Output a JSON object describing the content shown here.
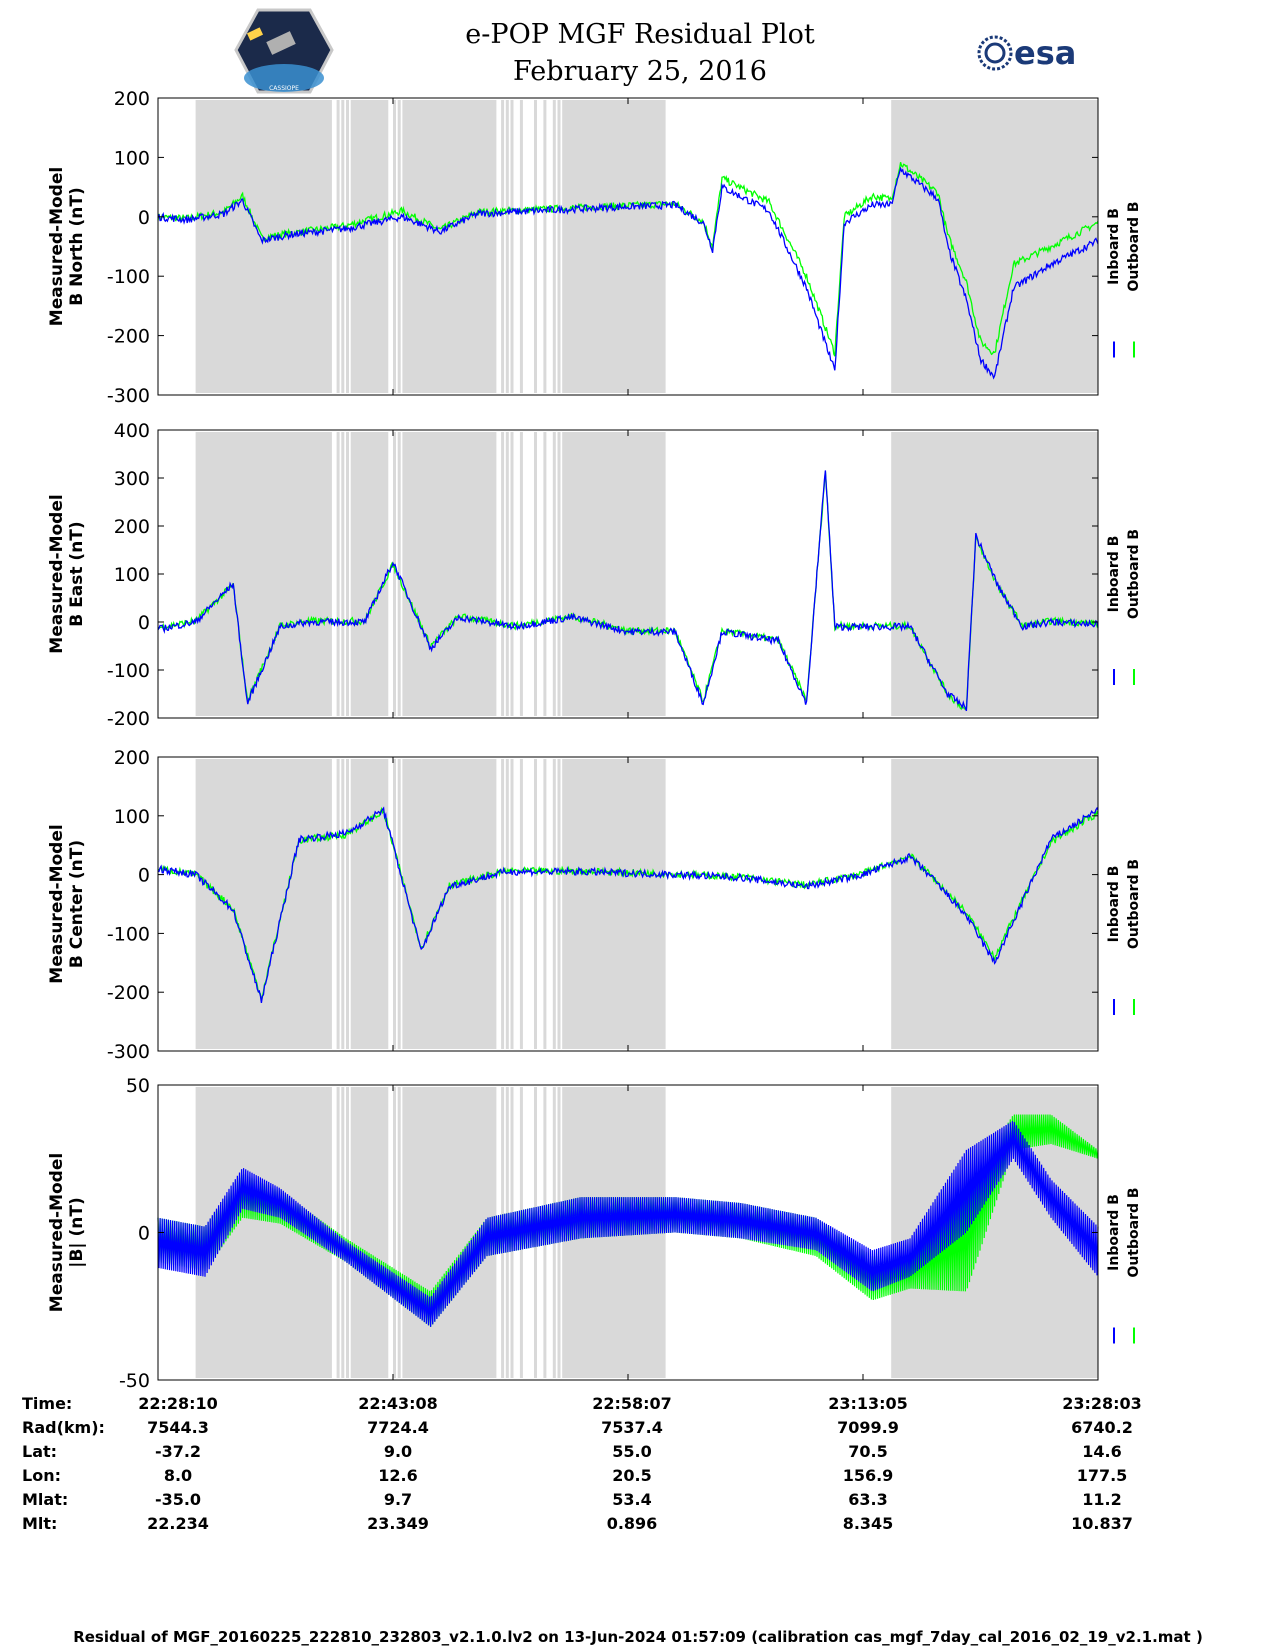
{
  "header": {
    "title_line1": "e-POP MGF Residual Plot",
    "title_line2": "February 25, 2016",
    "esa_logo_text": "esa",
    "cassiope_logo_text": "CASSIOPE"
  },
  "colors": {
    "inboard": "#0000ff",
    "outboard": "#00ff00",
    "shade": "#d9d9d9",
    "axis": "#000000"
  },
  "chart_data": [
    {
      "type": "line",
      "ylabel_line1": "Measured-Model",
      "ylabel_line2": "B North (nT)",
      "ylim": [
        -300,
        200
      ],
      "yticks": [
        200,
        100,
        0,
        -100,
        -200,
        -300
      ],
      "xlim": [
        0,
        1
      ],
      "legend": [
        "Inboard B",
        "Outboard B"
      ],
      "legend_placement": "right",
      "series": [
        {
          "name": "Inboard B",
          "x": [
            0,
            0.03,
            0.07,
            0.09,
            0.11,
            0.14,
            0.2,
            0.26,
            0.3,
            0.34,
            0.4,
            0.47,
            0.55,
            0.58,
            0.59,
            0.6,
            0.65,
            0.69,
            0.72,
            0.73,
            0.76,
            0.78,
            0.79,
            0.83,
            0.84,
            0.86,
            0.875,
            0.89,
            0.91,
            0.95,
            1.0
          ],
          "y": [
            0,
            -5,
            5,
            28,
            -40,
            -30,
            -20,
            0,
            -25,
            5,
            10,
            15,
            20,
            -10,
            -55,
            50,
            10,
            -120,
            -260,
            -10,
            20,
            20,
            80,
            30,
            -50,
            -140,
            -240,
            -270,
            -120,
            -80,
            -40
          ]
        },
        {
          "name": "Outboard B",
          "x": [
            0,
            0.03,
            0.07,
            0.09,
            0.11,
            0.14,
            0.2,
            0.26,
            0.3,
            0.34,
            0.4,
            0.47,
            0.55,
            0.58,
            0.59,
            0.6,
            0.65,
            0.69,
            0.72,
            0.73,
            0.76,
            0.78,
            0.79,
            0.83,
            0.84,
            0.86,
            0.875,
            0.89,
            0.91,
            0.95,
            1.0
          ],
          "y": [
            0,
            -3,
            8,
            35,
            -35,
            -28,
            -15,
            10,
            -22,
            8,
            12,
            17,
            22,
            -8,
            -50,
            65,
            25,
            -100,
            -230,
            0,
            35,
            30,
            90,
            40,
            -30,
            -110,
            -210,
            -230,
            -80,
            -50,
            -10
          ]
        }
      ]
    },
    {
      "type": "line",
      "ylabel_line1": "Measured-Model",
      "ylabel_line2": "B East (nT)",
      "ylim": [
        -200,
        400
      ],
      "yticks": [
        400,
        300,
        200,
        100,
        0,
        -100,
        -200
      ],
      "xlim": [
        0,
        1
      ],
      "legend": [
        "Inboard B",
        "Outboard B"
      ],
      "legend_placement": "right",
      "series": [
        {
          "name": "Inboard B",
          "x": [
            0,
            0.04,
            0.08,
            0.095,
            0.13,
            0.16,
            0.22,
            0.25,
            0.29,
            0.32,
            0.38,
            0.44,
            0.5,
            0.55,
            0.58,
            0.6,
            0.66,
            0.69,
            0.71,
            0.72,
            0.74,
            0.8,
            0.84,
            0.86,
            0.87,
            0.895,
            0.92,
            0.95,
            1.0
          ],
          "y": [
            -15,
            0,
            80,
            -170,
            -10,
            0,
            0,
            125,
            -55,
            10,
            -10,
            10,
            -20,
            -20,
            -170,
            -20,
            -40,
            -170,
            320,
            -10,
            -10,
            -10,
            -150,
            -180,
            180,
            70,
            -10,
            0,
            -5
          ]
        },
        {
          "name": "Outboard B",
          "x": [
            0,
            0.04,
            0.08,
            0.095,
            0.13,
            0.16,
            0.22,
            0.25,
            0.29,
            0.32,
            0.38,
            0.44,
            0.5,
            0.55,
            0.58,
            0.6,
            0.66,
            0.69,
            0.71,
            0.72,
            0.74,
            0.8,
            0.84,
            0.86,
            0.87,
            0.895,
            0.92,
            0.95,
            1.0
          ],
          "y": [
            -12,
            2,
            78,
            -165,
            -8,
            2,
            2,
            120,
            -50,
            12,
            -8,
            12,
            -18,
            -18,
            -165,
            -18,
            -38,
            -165,
            315,
            -8,
            -8,
            -8,
            -150,
            -185,
            175,
            68,
            -8,
            2,
            -3
          ]
        }
      ]
    },
    {
      "type": "line",
      "ylabel_line1": "Measured-Model",
      "ylabel_line2": "B Center (nT)",
      "ylim": [
        -300,
        200
      ],
      "yticks": [
        200,
        100,
        0,
        -100,
        -200,
        -300
      ],
      "xlim": [
        0,
        1
      ],
      "legend": [
        "Inboard B",
        "Outboard B"
      ],
      "legend_placement": "right",
      "series": [
        {
          "name": "Inboard B",
          "x": [
            0,
            0.04,
            0.08,
            0.11,
            0.15,
            0.2,
            0.24,
            0.28,
            0.31,
            0.37,
            0.45,
            0.55,
            0.62,
            0.69,
            0.75,
            0.8,
            0.82,
            0.86,
            0.89,
            0.95,
            1.0
          ],
          "y": [
            10,
            0,
            -60,
            -215,
            60,
            70,
            110,
            -130,
            -20,
            5,
            5,
            0,
            -5,
            -20,
            0,
            30,
            0,
            -70,
            -150,
            60,
            110
          ]
        },
        {
          "name": "Outboard B",
          "x": [
            0,
            0.04,
            0.08,
            0.11,
            0.15,
            0.2,
            0.24,
            0.28,
            0.31,
            0.37,
            0.45,
            0.55,
            0.62,
            0.69,
            0.75,
            0.8,
            0.82,
            0.86,
            0.89,
            0.95,
            1.0
          ],
          "y": [
            10,
            0,
            -58,
            -210,
            58,
            68,
            108,
            -125,
            -18,
            6,
            6,
            1,
            -4,
            -18,
            2,
            32,
            2,
            -65,
            -140,
            55,
            105
          ]
        }
      ]
    },
    {
      "type": "area",
      "ylabel_line1": "Measured-Model",
      "ylabel_line2": "|B| (nT)",
      "ylim": [
        -50,
        50
      ],
      "yticks": [
        50,
        0,
        -50
      ],
      "xlim": [
        0,
        1
      ],
      "legend": [
        "Inboard B",
        "Outboard B"
      ],
      "legend_placement": "right",
      "series": [
        {
          "name": "Inboard B",
          "x": [
            0,
            0.05,
            0.09,
            0.13,
            0.2,
            0.29,
            0.35,
            0.45,
            0.55,
            0.62,
            0.7,
            0.76,
            0.8,
            0.86,
            0.91,
            0.95,
            1.0
          ],
          "upper": [
            5,
            2,
            22,
            15,
            -3,
            -22,
            5,
            12,
            12,
            10,
            5,
            -6,
            -2,
            28,
            38,
            18,
            2
          ],
          "lower": [
            -12,
            -15,
            8,
            5,
            -10,
            -32,
            -8,
            -2,
            0,
            -2,
            -6,
            -20,
            -15,
            0,
            25,
            5,
            -15
          ]
        },
        {
          "name": "Outboard B",
          "x": [
            0,
            0.05,
            0.09,
            0.13,
            0.2,
            0.29,
            0.35,
            0.45,
            0.55,
            0.62,
            0.7,
            0.76,
            0.8,
            0.86,
            0.91,
            0.95,
            1.0
          ],
          "upper": [
            5,
            2,
            20,
            14,
            -2,
            -20,
            5,
            12,
            12,
            10,
            5,
            -8,
            -8,
            15,
            40,
            40,
            28
          ],
          "lower": [
            -10,
            -13,
            5,
            3,
            -10,
            -32,
            -8,
            -2,
            0,
            -2,
            -8,
            -23,
            -19,
            -20,
            28,
            30,
            25
          ]
        }
      ]
    }
  ],
  "shading": {
    "blocks": [
      [
        0.04,
        0.185
      ],
      [
        0.205,
        0.245
      ],
      [
        0.26,
        0.36
      ],
      [
        0.43,
        0.54
      ],
      [
        0.78,
        1.0
      ]
    ],
    "stripes": [
      0.19,
      0.195,
      0.2,
      0.25,
      0.255,
      0.365,
      0.37,
      0.375,
      0.385,
      0.4,
      0.41,
      0.42,
      0.425,
      0.5,
      0.505,
      0.51,
      0.52,
      0.525,
      0.53
    ]
  },
  "x_ticks": [
    0,
    0.25,
    0.5,
    0.75,
    1.0
  ],
  "footer_table": {
    "rows": [
      {
        "label": "Time:",
        "values": [
          "22:28:10",
          "22:43:08",
          "22:58:07",
          "23:13:05",
          "23:28:03"
        ]
      },
      {
        "label": "Rad(km):",
        "values": [
          "7544.3",
          "7724.4",
          "7537.4",
          "7099.9",
          "6740.2"
        ]
      },
      {
        "label": "Lat:",
        "values": [
          "-37.2",
          "9.0",
          "55.0",
          "70.5",
          "14.6"
        ]
      },
      {
        "label": "Lon:",
        "values": [
          "8.0",
          "12.6",
          "20.5",
          "156.9",
          "177.5"
        ]
      },
      {
        "label": "Mlat:",
        "values": [
          "-35.0",
          "9.7",
          "53.4",
          "63.3",
          "11.2"
        ]
      },
      {
        "label": "Mlt:",
        "values": [
          "22.234",
          "23.349",
          "0.896",
          "8.345",
          "10.837"
        ]
      }
    ]
  },
  "footer_note": "Residual of MGF_20160225_222810_232803_v2.1.0.lv2 on 13-Jun-2024 01:57:09 (calibration cas_mgf_7day_cal_2016_02_19_v2.1.mat )"
}
